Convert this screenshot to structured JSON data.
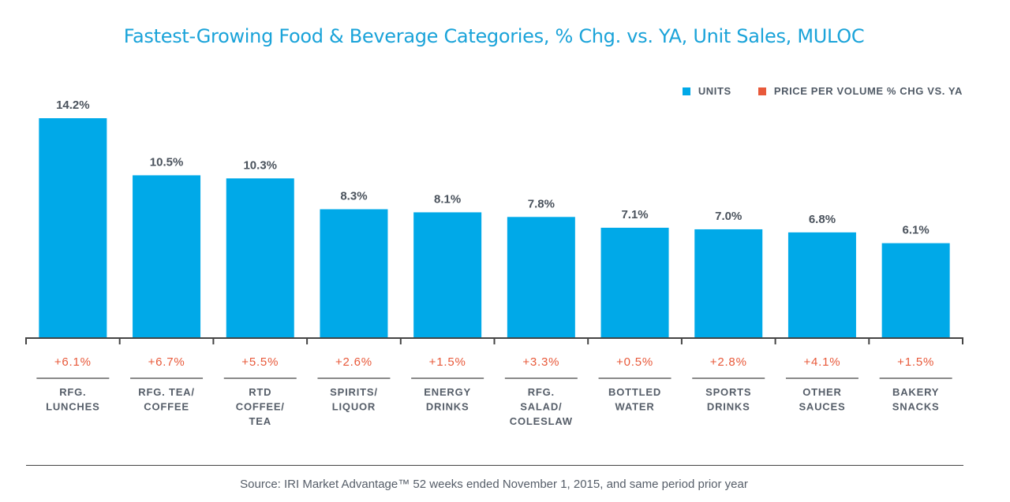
{
  "chart_data": {
    "type": "bar",
    "title": "Fastest-Growing Food & Beverage Categories, % Chg. vs. YA, Unit Sales, MULOC",
    "xlabel": "",
    "ylabel": "",
    "ylim": [
      0,
      14.2
    ],
    "grid": false,
    "legend_position": "top-right",
    "legend": [
      {
        "name": "UNITS",
        "color": "#00a9e8"
      },
      {
        "name": "PRICE PER VOLUME % CHG VS. YA",
        "color": "#e8593a"
      }
    ],
    "categories": [
      [
        "RFG.",
        "LUNCHES"
      ],
      [
        "RFG. TEA/",
        "COFFEE"
      ],
      [
        "RTD",
        "COFFEE/",
        "TEA"
      ],
      [
        "SPIRITS/",
        "LIQUOR"
      ],
      [
        "ENERGY",
        "DRINKS"
      ],
      [
        "RFG.",
        "SALAD/",
        "COLESLAW"
      ],
      [
        "BOTTLED",
        "WATER"
      ],
      [
        "SPORTS",
        "DRINKS"
      ],
      [
        "OTHER",
        "SAUCES"
      ],
      [
        "BAKERY",
        "SNACKS"
      ]
    ],
    "series": [
      {
        "name": "UNITS",
        "values": [
          14.2,
          10.5,
          10.3,
          8.3,
          8.1,
          7.8,
          7.1,
          7.0,
          6.8,
          6.1
        ],
        "labels": [
          "14.2%",
          "10.5%",
          "10.3%",
          "8.3%",
          "8.1%",
          "7.8%",
          "7.1%",
          "7.0%",
          "6.8%",
          "6.1%"
        ]
      },
      {
        "name": "PRICE PER VOLUME % CHG VS. YA",
        "values": [
          6.1,
          6.7,
          5.5,
          2.6,
          1.5,
          3.3,
          0.5,
          2.8,
          4.1,
          1.5
        ],
        "labels": [
          "+6.1%",
          "+6.7%",
          "+5.5%",
          "+2.6%",
          "+1.5%",
          "+3.3%",
          "+0.5%",
          "+2.8%",
          "+4.1%",
          "+1.5%"
        ]
      }
    ],
    "source": "Source:  IRI Market Advantage™ 52 weeks ended November 1, 2015, and same period prior year"
  }
}
